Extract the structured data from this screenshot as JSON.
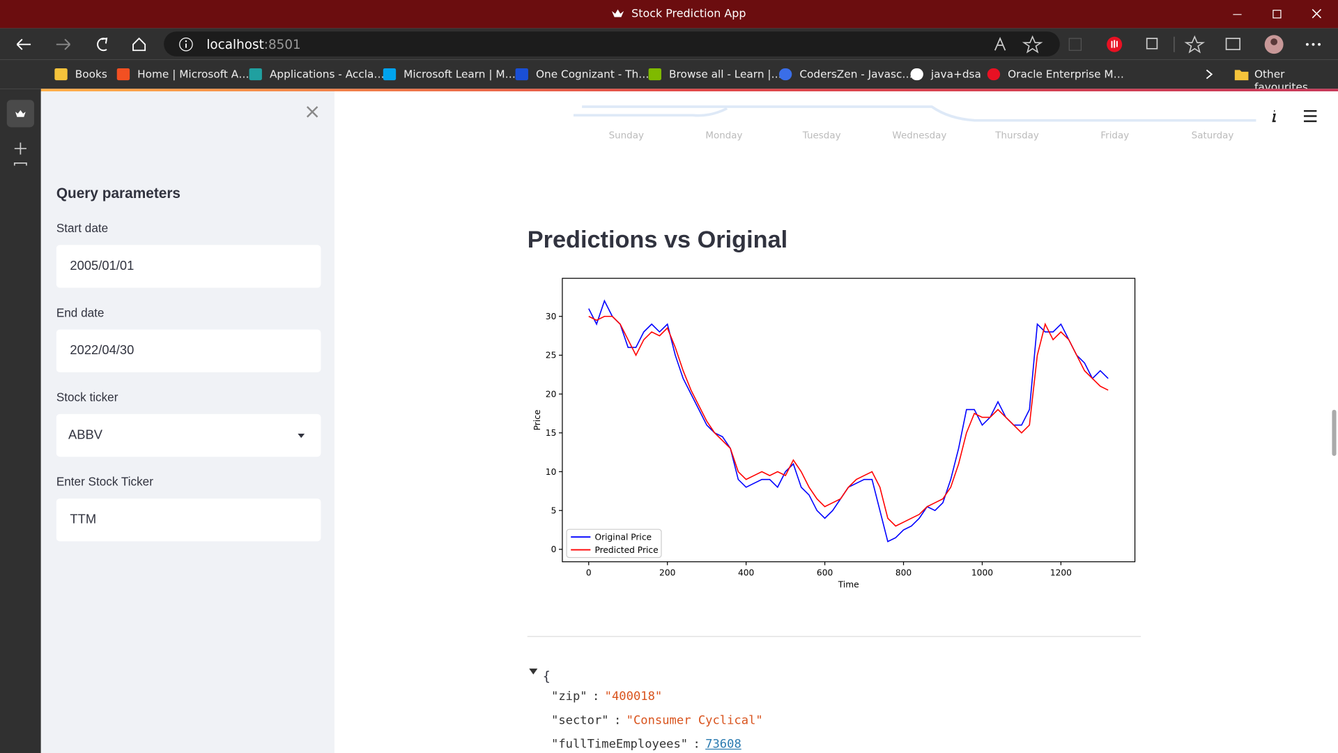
{
  "window": {
    "title": "Stock Prediction App"
  },
  "browser": {
    "host": "localhost",
    "port": ":8501",
    "bookmarks": [
      "Books",
      "Home | Microsoft A…",
      "Applications - Accla…",
      "Microsoft Learn | M…",
      "One Cognizant - Th…",
      "Browse all - Learn |…",
      "CodersZen - Javasc…",
      "java+dsa",
      "Oracle Enterprise M…"
    ],
    "other_favourites": "Other favourites"
  },
  "sidebar": {
    "heading": "Query parameters",
    "fields": [
      {
        "label": "Start date",
        "value": "2005/01/01"
      },
      {
        "label": "End date",
        "value": "2022/04/30"
      },
      {
        "label": "Stock ticker",
        "value": "ABBV"
      },
      {
        "label": "Enter Stock Ticker",
        "value": "TTM"
      }
    ]
  },
  "main": {
    "previous_chart_labels": [
      "Sunday",
      "Monday",
      "Tuesday",
      "Wednesday",
      "Thursday",
      "Friday",
      "Saturday"
    ],
    "heading": "Predictions vs Original",
    "json_view": {
      "open": "{",
      "separator": ":",
      "entries": [
        {
          "key": "\"zip\"",
          "value": "\"400018\"",
          "kind": "string"
        },
        {
          "key": "\"sector\"",
          "value": "\"Consumer Cyclical\"",
          "kind": "string"
        },
        {
          "key": "\"fullTimeEmployees\"",
          "value": 73608,
          "kind": "number"
        }
      ]
    }
  },
  "chart_data": {
    "type": "line",
    "x_label": "Time",
    "y_label": "Price",
    "x": [
      0,
      20,
      40,
      60,
      80,
      100,
      120,
      140,
      160,
      180,
      200,
      220,
      240,
      260,
      280,
      300,
      320,
      340,
      360,
      380,
      400,
      420,
      440,
      460,
      480,
      500,
      520,
      540,
      560,
      580,
      600,
      620,
      640,
      660,
      680,
      700,
      720,
      740,
      760,
      780,
      800,
      820,
      840,
      860,
      880,
      900,
      920,
      940,
      960,
      980,
      1000,
      1020,
      1040,
      1060,
      1080,
      1100,
      1120,
      1140,
      1160,
      1180,
      1200,
      1220,
      1240,
      1260,
      1280,
      1300,
      1320
    ],
    "series": [
      {
        "name": "Original Price",
        "color": "#0000ff",
        "values": [
          31,
          29,
          32,
          30,
          29,
          26,
          26,
          28,
          29,
          28,
          29,
          25,
          22,
          20,
          18,
          16,
          15,
          14.5,
          13,
          9,
          8,
          8.5,
          9,
          9,
          8,
          10,
          11,
          8,
          7,
          5,
          4,
          5,
          6.5,
          8,
          8.5,
          9,
          9,
          5,
          1,
          1.5,
          2.5,
          3,
          4,
          5.5,
          5,
          6,
          9,
          13,
          18,
          18,
          16,
          17,
          19,
          17,
          16,
          16,
          18,
          29,
          28,
          28,
          29,
          27,
          25,
          24,
          22,
          23,
          22
        ]
      },
      {
        "name": "Predicted Price",
        "color": "#ff0000",
        "values": [
          30,
          29.5,
          30,
          30,
          29,
          27,
          25,
          27,
          28,
          27.5,
          28.5,
          26,
          23,
          20.5,
          18.5,
          16.5,
          15,
          14,
          13,
          10,
          9,
          9.5,
          10,
          9.5,
          10,
          9.5,
          11.5,
          10,
          8,
          6.5,
          5.5,
          6,
          6.5,
          8,
          9,
          9.5,
          10,
          8,
          4,
          3,
          3.5,
          4,
          4.5,
          5.5,
          6,
          6.5,
          8,
          11,
          15,
          17.5,
          17,
          17,
          18,
          17,
          16,
          15,
          16,
          25,
          29,
          27,
          28,
          27,
          25,
          23,
          22,
          21,
          20.5
        ]
      }
    ],
    "xlim": [
      -67,
      1388
    ],
    "ylim": [
      -1.6,
      34.9
    ],
    "xticks": [
      0,
      200,
      400,
      600,
      800,
      1000,
      1200
    ],
    "yticks": [
      0,
      5,
      10,
      15,
      20,
      25,
      30
    ],
    "grid": false,
    "legend": "lower left"
  }
}
